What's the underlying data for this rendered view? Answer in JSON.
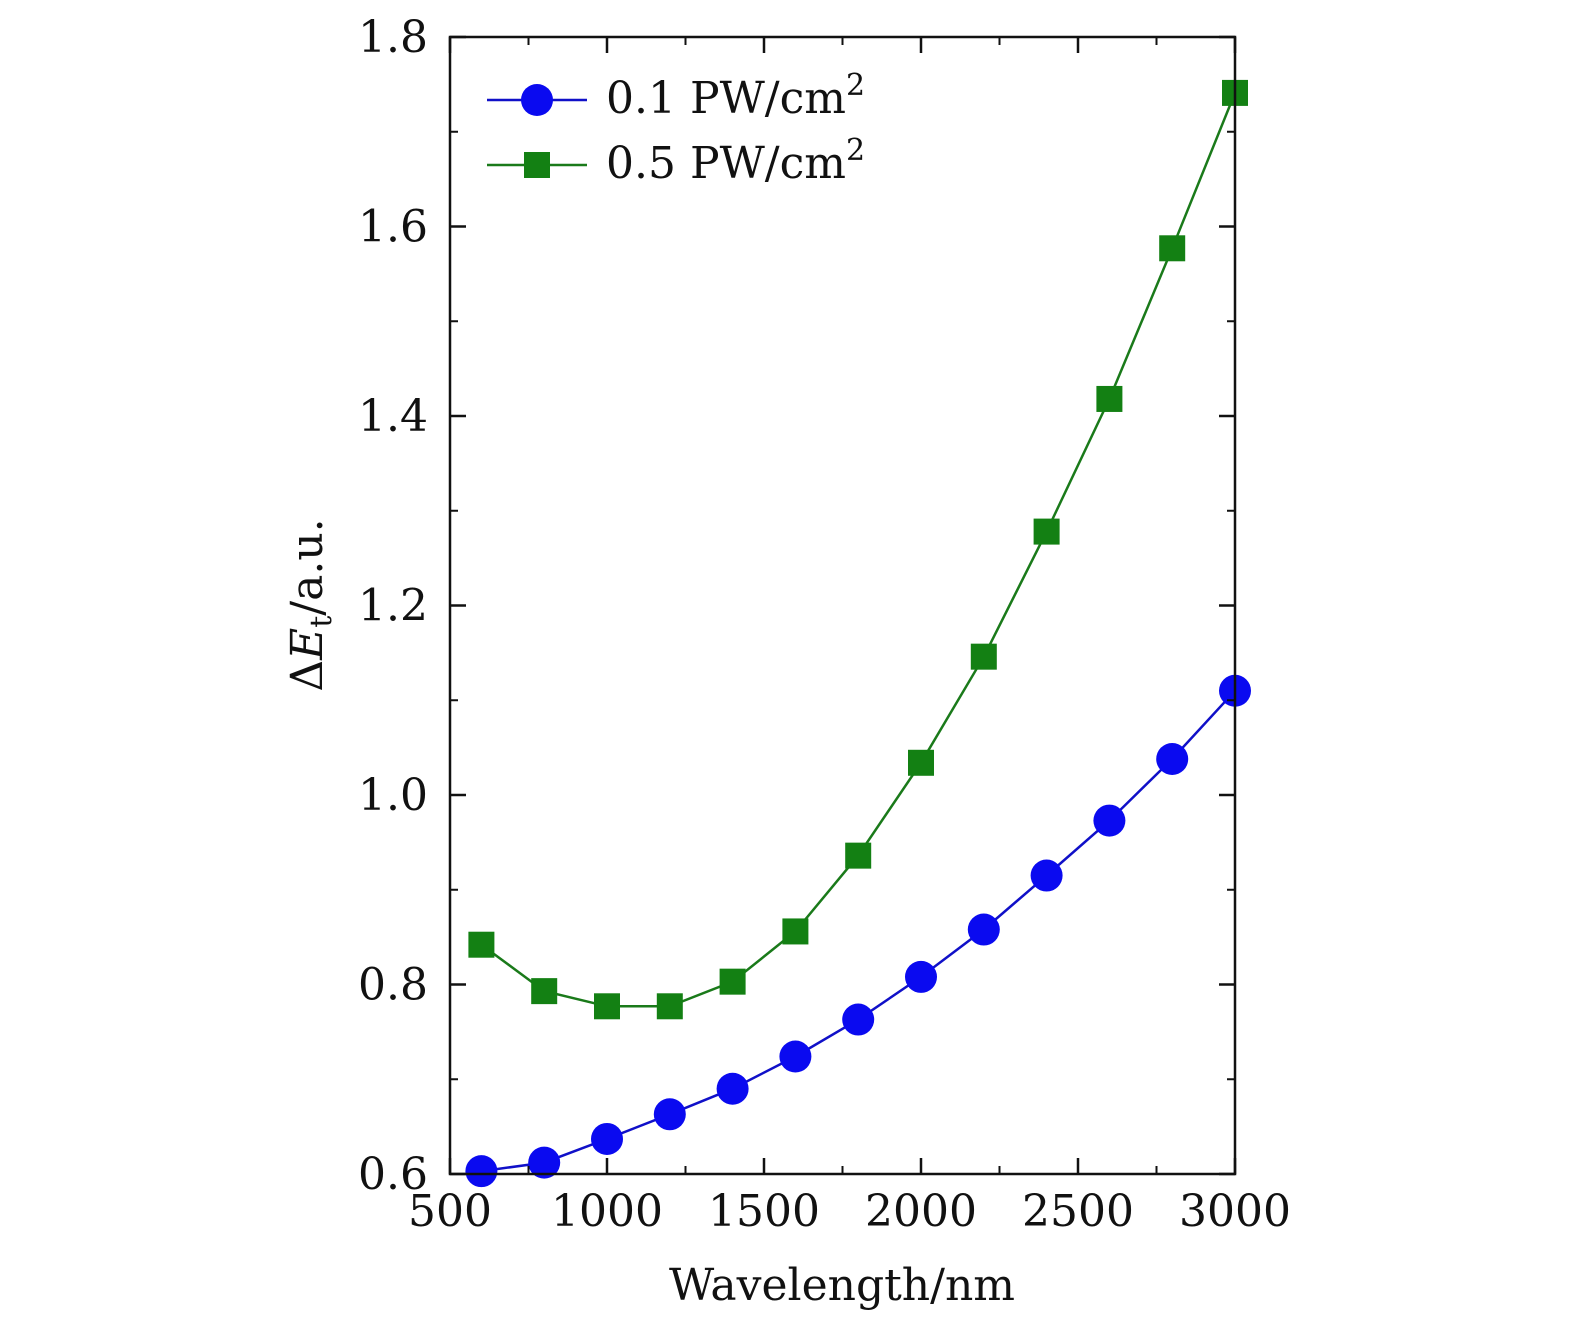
{
  "chart_data": {
    "type": "line",
    "title": "",
    "xlabel": "Wavelength/nm",
    "ylabel": {
      "prefix": "Δ",
      "symbol": "E",
      "subscript": "t",
      "suffix": "/a.u."
    },
    "xlim": [
      500,
      3000
    ],
    "ylim": [
      0.6,
      1.8
    ],
    "xticks": [
      500,
      1000,
      1500,
      2000,
      2500,
      3000
    ],
    "xtick_labels": [
      "500",
      "1000",
      "1500",
      "2000",
      "2500",
      "3000"
    ],
    "yticks": [
      0.6,
      0.8,
      1.0,
      1.2,
      1.4,
      1.6,
      1.8
    ],
    "ytick_labels": [
      "0.6",
      "0.8",
      "1.0",
      "1.2",
      "1.4",
      "1.6",
      "1.8"
    ],
    "grid": false,
    "legend_position": "top-left",
    "x": [
      600,
      800,
      1000,
      1200,
      1400,
      1600,
      1800,
      2000,
      2200,
      2400,
      2600,
      2800,
      3000
    ],
    "series": [
      {
        "name": "0.1 PW/cm2",
        "legend_main": "0.1 PW/cm",
        "legend_sup": "2",
        "color": "#1010c8",
        "marker_color": "#0a0af0",
        "marker": "circle",
        "values": [
          0.603,
          0.612,
          0.637,
          0.663,
          0.69,
          0.724,
          0.763,
          0.808,
          0.858,
          0.915,
          0.973,
          1.038,
          1.11
        ]
      },
      {
        "name": "0.5 PW/cm2",
        "legend_main": "0.5 PW/cm",
        "legend_sup": "2",
        "color": "#1a7a1a",
        "marker_color": "#138013",
        "marker": "square",
        "values": [
          0.842,
          0.793,
          0.777,
          0.777,
          0.803,
          0.856,
          0.936,
          1.034,
          1.146,
          1.278,
          1.418,
          1.577,
          1.741
        ]
      }
    ]
  }
}
